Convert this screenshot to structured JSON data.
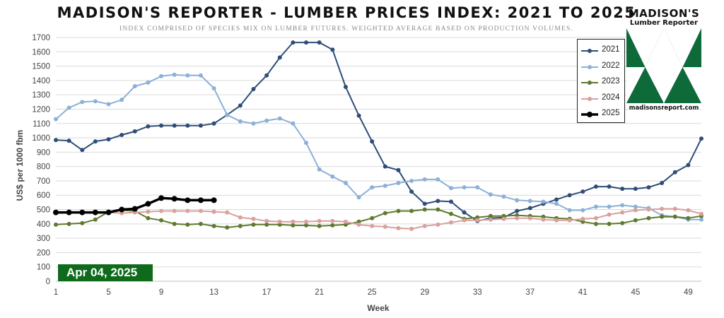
{
  "header": {
    "title": "MADISON'S REPORTER - LUMBER PRICES INDEX: 2021 TO 2025",
    "subtitle": "INDEX COMPRISED OF SPECIES MIX ON LUMBER FUTURES. WEIGHTED AVERAGE BASED ON PRODUCTION VOLUMES."
  },
  "logo": {
    "name_line_1": "MADISON'S",
    "name_line_2": "Lumber Reporter",
    "url": "madisonsreport.com",
    "color": "#0f6a3a"
  },
  "date_badge": "Apr 04, 2025",
  "chart_data": {
    "type": "line",
    "xlabel": "Week",
    "ylabel": "US$ per 1000 fbm",
    "xlim": [
      1,
      50
    ],
    "ylim": [
      0,
      1700
    ],
    "x_ticks": [
      1,
      5,
      9,
      13,
      17,
      21,
      25,
      29,
      33,
      37,
      41,
      45,
      49
    ],
    "y_ticks": [
      0,
      100,
      200,
      300,
      400,
      500,
      600,
      700,
      800,
      900,
      1000,
      1100,
      1200,
      1300,
      1400,
      1500,
      1600,
      1700
    ],
    "grid": "horizontal",
    "legend_position": "top-right",
    "series": [
      {
        "name": "2021",
        "color": "#2e4e78",
        "x": [
          1,
          2,
          3,
          4,
          5,
          6,
          7,
          8,
          9,
          10,
          11,
          12,
          13,
          14,
          15,
          16,
          17,
          18,
          19,
          20,
          21,
          22,
          23,
          24,
          25,
          26,
          27,
          28,
          29,
          30,
          31,
          32,
          33,
          34,
          35,
          36,
          37,
          38,
          39,
          40,
          41,
          42,
          43,
          44,
          45,
          46,
          47,
          48,
          49,
          50
        ],
        "values": [
          985,
          980,
          915,
          975,
          990,
          1020,
          1045,
          1080,
          1085,
          1085,
          1085,
          1085,
          1100,
          1160,
          1225,
          1340,
          1435,
          1560,
          1665,
          1665,
          1665,
          1615,
          1355,
          1155,
          975,
          800,
          775,
          625,
          540,
          560,
          555,
          480,
          420,
          440,
          445,
          490,
          510,
          540,
          570,
          600,
          625,
          660,
          660,
          645,
          645,
          655,
          685,
          760,
          810,
          995
        ]
      },
      {
        "name": "2022",
        "color": "#8cb0d8",
        "x": [
          1,
          2,
          3,
          4,
          5,
          6,
          7,
          8,
          9,
          10,
          11,
          12,
          13,
          14,
          15,
          16,
          17,
          18,
          19,
          20,
          21,
          22,
          23,
          24,
          25,
          26,
          27,
          28,
          29,
          30,
          31,
          32,
          33,
          34,
          35,
          36,
          37,
          38,
          39,
          40,
          41,
          42,
          43,
          44,
          45,
          46,
          47,
          48,
          49,
          50
        ],
        "values": [
          1130,
          1210,
          1250,
          1255,
          1235,
          1265,
          1360,
          1385,
          1430,
          1440,
          1435,
          1435,
          1345,
          1160,
          1115,
          1100,
          1120,
          1135,
          1100,
          965,
          780,
          730,
          685,
          585,
          655,
          665,
          685,
          700,
          710,
          710,
          650,
          655,
          655,
          605,
          590,
          565,
          560,
          555,
          540,
          495,
          495,
          520,
          520,
          530,
          520,
          510,
          460,
          450,
          430,
          430
        ]
      },
      {
        "name": "2023",
        "color": "#5f7a2e",
        "x": [
          1,
          2,
          3,
          4,
          5,
          6,
          7,
          8,
          9,
          10,
          11,
          12,
          13,
          14,
          15,
          16,
          17,
          18,
          19,
          20,
          21,
          22,
          23,
          24,
          25,
          26,
          27,
          28,
          29,
          30,
          31,
          32,
          33,
          34,
          35,
          36,
          37,
          38,
          39,
          40,
          41,
          42,
          43,
          44,
          45,
          46,
          47,
          48,
          49,
          50
        ],
        "values": [
          395,
          400,
          405,
          430,
          485,
          495,
          490,
          440,
          425,
          400,
          395,
          400,
          385,
          375,
          385,
          395,
          395,
          395,
          390,
          390,
          385,
          390,
          395,
          415,
          440,
          475,
          490,
          490,
          500,
          500,
          470,
          435,
          445,
          455,
          455,
          460,
          455,
          450,
          440,
          435,
          415,
          400,
          400,
          405,
          425,
          440,
          450,
          450,
          440,
          455
        ]
      },
      {
        "name": "2024",
        "color": "#d9a09c",
        "x": [
          1,
          2,
          3,
          4,
          5,
          6,
          7,
          8,
          9,
          10,
          11,
          12,
          13,
          14,
          15,
          16,
          17,
          18,
          19,
          20,
          21,
          22,
          23,
          24,
          25,
          26,
          27,
          28,
          29,
          30,
          31,
          32,
          33,
          34,
          35,
          36,
          37,
          38,
          39,
          40,
          41,
          42,
          43,
          44,
          45,
          46,
          47,
          48,
          49,
          50
        ],
        "values": [
          475,
          480,
          480,
          475,
          480,
          475,
          480,
          485,
          490,
          490,
          490,
          490,
          485,
          480,
          445,
          435,
          420,
          415,
          415,
          415,
          420,
          420,
          415,
          395,
          385,
          380,
          370,
          365,
          385,
          395,
          410,
          425,
          425,
          430,
          435,
          440,
          440,
          430,
          425,
          425,
          435,
          440,
          465,
          480,
          495,
          500,
          505,
          505,
          495,
          470
        ]
      },
      {
        "name": "2025",
        "color": "#000000",
        "x": [
          1,
          2,
          3,
          4,
          5,
          6,
          7,
          8,
          9,
          10,
          11,
          12,
          13
        ],
        "values": [
          480,
          480,
          480,
          480,
          480,
          500,
          505,
          540,
          580,
          575,
          565,
          565,
          565
        ]
      }
    ]
  }
}
